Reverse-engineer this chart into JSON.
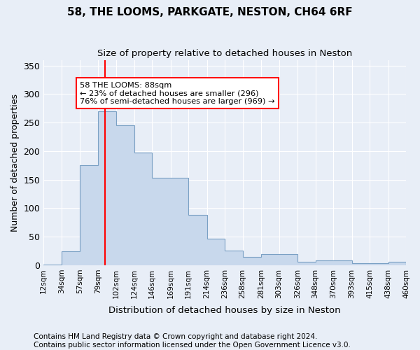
{
  "title": "58, THE LOOMS, PARKGATE, NESTON, CH64 6RF",
  "subtitle": "Size of property relative to detached houses in Neston",
  "xlabel": "Distribution of detached houses by size in Neston",
  "ylabel": "Number of detached properties",
  "bar_color": "#c8d8ec",
  "bar_edge_color": "#7aa0c4",
  "background_color": "#e8eef7",
  "grid_color": "#ffffff",
  "vline_x": 88,
  "vline_color": "red",
  "annotation_text": "58 THE LOOMS: 88sqm\n← 23% of detached houses are smaller (296)\n76% of semi-detached houses are larger (969) →",
  "annotation_box_color": "white",
  "annotation_box_edge": "red",
  "bin_edges": [
    12,
    34,
    57,
    79,
    102,
    124,
    146,
    169,
    191,
    214,
    236,
    258,
    281,
    303,
    326,
    348,
    370,
    393,
    415,
    438,
    460
  ],
  "bar_heights": [
    1,
    25,
    175,
    270,
    245,
    198,
    153,
    153,
    88,
    46,
    26,
    14,
    20,
    20,
    6,
    8,
    8,
    4,
    4,
    6
  ],
  "ylim": [
    0,
    360
  ],
  "yticks": [
    0,
    50,
    100,
    150,
    200,
    250,
    300,
    350
  ],
  "footer_text": "Contains HM Land Registry data © Crown copyright and database right 2024.\nContains public sector information licensed under the Open Government Licence v3.0.",
  "footer_fontsize": 7.5
}
